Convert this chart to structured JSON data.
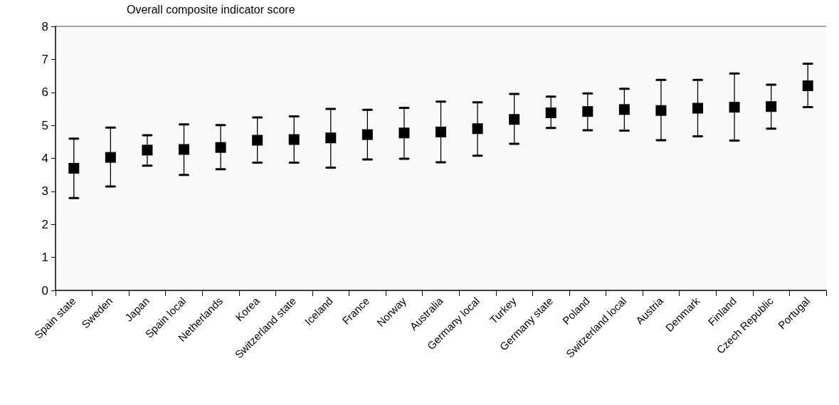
{
  "chart_data": {
    "type": "scatter",
    "ylabel": "Overall composite indicator score",
    "categories": [
      "Spain state",
      "Sweden",
      "Japan",
      "Spain local",
      "Netherlands",
      "Korea",
      "Switzerland state",
      "Iceland",
      "France",
      "Norway",
      "Australia",
      "Germany local",
      "Turkey",
      "Germany state",
      "Poland",
      "Switzerland local",
      "Austria",
      "Denmark",
      "Finland",
      "Czech Republic",
      "Portugal"
    ],
    "values": [
      3.7,
      4.03,
      4.25,
      4.27,
      4.33,
      4.55,
      4.57,
      4.62,
      4.72,
      4.77,
      4.8,
      4.9,
      5.18,
      5.38,
      5.42,
      5.48,
      5.45,
      5.52,
      5.55,
      5.57,
      6.2
    ],
    "errors": [
      [
        2.8,
        4.6
      ],
      [
        3.15,
        4.93
      ],
      [
        3.78,
        4.7
      ],
      [
        3.5,
        5.03
      ],
      [
        3.67,
        5.01
      ],
      [
        3.87,
        5.24
      ],
      [
        3.87,
        5.27
      ],
      [
        3.72,
        5.5
      ],
      [
        3.97,
        5.47
      ],
      [
        3.99,
        5.53
      ],
      [
        3.88,
        5.72
      ],
      [
        4.08,
        5.7
      ],
      [
        4.44,
        5.95
      ],
      [
        4.92,
        5.87
      ],
      [
        4.85,
        5.97
      ],
      [
        4.84,
        6.11
      ],
      [
        4.55,
        6.38
      ],
      [
        4.67,
        6.38
      ],
      [
        4.54,
        6.57
      ],
      [
        4.9,
        6.23
      ],
      [
        5.55,
        6.87
      ]
    ],
    "color": "#000000",
    "marker": "square",
    "ylim": [
      0,
      8
    ],
    "yticks": [
      0,
      1,
      2,
      3,
      4,
      5,
      6,
      7,
      8
    ],
    "grid": false
  }
}
